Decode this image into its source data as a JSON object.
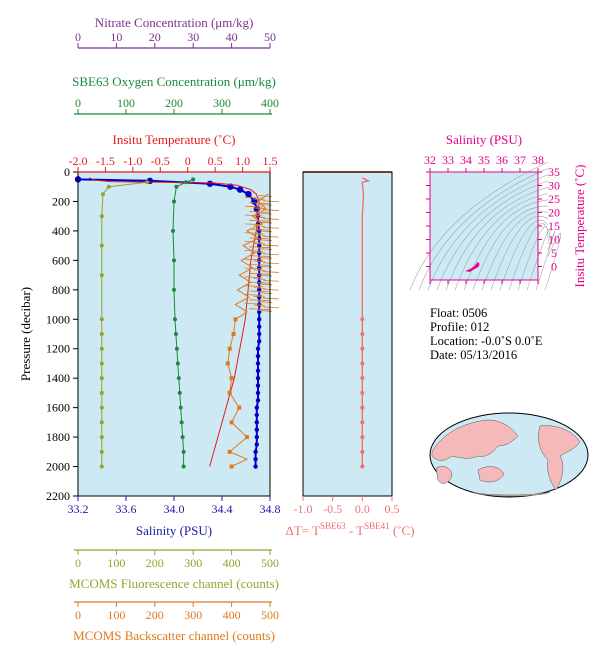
{
  "chart_data": [
    {
      "type": "line",
      "panel": "profiles",
      "axes": {
        "pressure": {
          "label": "Pressure (decibar)",
          "range": [
            0,
            2200
          ],
          "ticks": [
            "0",
            "200",
            "400",
            "600",
            "800",
            "1000",
            "1200",
            "1400",
            "1600",
            "1800",
            "2000",
            "2200"
          ]
        },
        "salinity": {
          "label": "Salinity (PSU)",
          "range": [
            33.2,
            34.8
          ],
          "ticks": [
            "33.2",
            "33.6",
            "34.0",
            "34.4",
            "34.8"
          ],
          "color": "#1a1aa8"
        },
        "temperature": {
          "label": "Insitu Temperature (˚C)",
          "range": [
            -2.0,
            1.5
          ],
          "ticks": [
            "-2.0",
            "-1.5",
            "-1.0",
            "-0.5",
            "0",
            "0.5",
            "1.0",
            "1.5"
          ],
          "color": "#e41a1c"
        },
        "nitrate": {
          "label": "Nitrate Concentration (μm/kg)",
          "range": [
            0,
            50
          ],
          "ticks": [
            "0",
            "10",
            "20",
            "30",
            "40",
            "50"
          ],
          "color": "#7b3294"
        },
        "oxygen": {
          "label": "SBE63 Oxygen Concentration (μm/kg)",
          "range": [
            0,
            400
          ],
          "ticks": [
            "0",
            "100",
            "200",
            "300",
            "400"
          ],
          "color": "#1a8a3a"
        },
        "fluorescence": {
          "label": "MCOMS Fluorescence channel (counts)",
          "range": [
            0,
            500
          ],
          "ticks": [
            "0",
            "100",
            "200",
            "300",
            "400",
            "500"
          ],
          "color": "#9aa02e"
        },
        "backscatter": {
          "label": "MCOMS Backscatter channel (counts)",
          "range": [
            0,
            500
          ],
          "ticks": [
            "0",
            "100",
            "200",
            "300",
            "400",
            "500"
          ],
          "color": "#e0781e"
        }
      },
      "series": [
        {
          "name": "Salinity (PSU)",
          "color": "#0000cc",
          "points": [
            [
              33.2,
              50
            ],
            [
              33.8,
              60
            ],
            [
              34.3,
              80
            ],
            [
              34.47,
              100
            ],
            [
              34.55,
              120
            ],
            [
              34.62,
              150
            ],
            [
              34.67,
              200
            ],
            [
              34.69,
              250
            ],
            [
              34.7,
              300
            ],
            [
              34.7,
              350
            ],
            [
              34.71,
              400
            ],
            [
              34.71,
              450
            ],
            [
              34.71,
              500
            ],
            [
              34.71,
              550
            ],
            [
              34.71,
              600
            ],
            [
              34.71,
              650
            ],
            [
              34.71,
              700
            ],
            [
              34.71,
              750
            ],
            [
              34.71,
              800
            ],
            [
              34.71,
              850
            ],
            [
              34.71,
              900
            ],
            [
              34.71,
              950
            ],
            [
              34.71,
              1000
            ],
            [
              34.71,
              1050
            ],
            [
              34.71,
              1100
            ],
            [
              34.71,
              1150
            ],
            [
              34.7,
              1200
            ],
            [
              34.7,
              1250
            ],
            [
              34.7,
              1300
            ],
            [
              34.7,
              1350
            ],
            [
              34.7,
              1400
            ],
            [
              34.7,
              1450
            ],
            [
              34.7,
              1500
            ],
            [
              34.7,
              1550
            ],
            [
              34.69,
              1600
            ],
            [
              34.69,
              1650
            ],
            [
              34.69,
              1700
            ],
            [
              34.69,
              1750
            ],
            [
              34.69,
              1800
            ],
            [
              34.69,
              1850
            ],
            [
              34.68,
              1900
            ],
            [
              34.68,
              1950
            ],
            [
              34.68,
              2000
            ]
          ]
        },
        {
          "name": "Insitu Temperature (˚C)",
          "color": "#e41a1c",
          "points": [
            [
              -1.8,
              40
            ],
            [
              -1.7,
              55
            ],
            [
              -1.4,
              65
            ],
            [
              -0.5,
              70
            ],
            [
              0.5,
              75
            ],
            [
              0.9,
              90
            ],
            [
              1.15,
              120
            ],
            [
              1.25,
              150
            ],
            [
              1.3,
              200
            ],
            [
              1.28,
              300
            ],
            [
              1.25,
              400
            ],
            [
              1.2,
              500
            ],
            [
              1.15,
              600
            ],
            [
              1.1,
              800
            ],
            [
              1.05,
              1000
            ],
            [
              0.95,
              1200
            ],
            [
              0.85,
              1400
            ],
            [
              0.7,
              1600
            ],
            [
              0.55,
              1800
            ],
            [
              0.4,
              2000
            ]
          ]
        },
        {
          "name": "Nitrate Concentration (μm/kg)",
          "color": "#7b3294",
          "points": []
        },
        {
          "name": "SBE63 Oxygen Concentration (μm/kg)",
          "color": "#1a8a3a",
          "points": [
            [
              240,
              50
            ],
            [
              225,
              70
            ],
            [
              205,
              100
            ],
            [
              200,
              200
            ],
            [
              198,
              400
            ],
            [
              200,
              600
            ],
            [
              200,
              800
            ],
            [
              202,
              1000
            ],
            [
              204,
              1100
            ],
            [
              206,
              1200
            ],
            [
              208,
              1300
            ],
            [
              210,
              1400
            ],
            [
              212,
              1500
            ],
            [
              214,
              1600
            ],
            [
              216,
              1700
            ],
            [
              218,
              1800
            ],
            [
              220,
              1900
            ],
            [
              220,
              2000
            ]
          ]
        },
        {
          "name": "MCOMS Fluorescence channel (counts)",
          "color": "#9aa02e",
          "points": [
            [
              180,
              70
            ],
            [
              80,
              100
            ],
            [
              65,
              150
            ],
            [
              62,
              300
            ],
            [
              62,
              500
            ],
            [
              62,
              700
            ],
            [
              62,
              1000
            ],
            [
              62,
              1100
            ],
            [
              62,
              1200
            ],
            [
              62,
              1300
            ],
            [
              62,
              1400
            ],
            [
              62,
              1500
            ],
            [
              62,
              1600
            ],
            [
              62,
              1700
            ],
            [
              62,
              1800
            ],
            [
              62,
              1900
            ],
            [
              62,
              2000
            ]
          ]
        },
        {
          "name": "MCOMS Backscatter channel (counts)",
          "color": "#e0781e",
          "points": [
            [
              495,
              150
            ],
            [
              470,
              200
            ],
            [
              490,
              250
            ],
            [
              455,
              300
            ],
            [
              480,
              350
            ],
            [
              440,
              400
            ],
            [
              470,
              450
            ],
            [
              430,
              500
            ],
            [
              460,
              550
            ],
            [
              425,
              600
            ],
            [
              455,
              650
            ],
            [
              420,
              700
            ],
            [
              450,
              750
            ],
            [
              415,
              800
            ],
            [
              445,
              850
            ],
            [
              410,
              900
            ],
            [
              440,
              950
            ],
            [
              410,
              1000
            ],
            [
              405,
              1100
            ],
            [
              395,
              1200
            ],
            [
              390,
              1300
            ],
            [
              400,
              1400
            ],
            [
              395,
              1500
            ],
            [
              420,
              1600
            ],
            [
              400,
              1700
            ],
            [
              440,
              1800
            ],
            [
              395,
              1900
            ],
            [
              440,
              1950
            ],
            [
              400,
              2000
            ]
          ],
          "markers": [
            [
              410,
              1000
            ],
            [
              405,
              1100
            ],
            [
              395,
              1200
            ],
            [
              390,
              1300
            ],
            [
              400,
              1400
            ],
            [
              395,
              1500
            ],
            [
              420,
              1600
            ],
            [
              400,
              1700
            ],
            [
              440,
              1800
            ],
            [
              395,
              1900
            ],
            [
              400,
              2000
            ]
          ]
        }
      ]
    },
    {
      "type": "line",
      "panel": "delta-t",
      "xlabel_parts": [
        "ΔT= T",
        "SBE63",
        " - T",
        "SBE41",
        " (˚C)"
      ],
      "xlim": [
        -1.0,
        0.5
      ],
      "xticks": [
        "-1.0",
        "-0.5",
        "0.0",
        "0.5"
      ],
      "ylim": [
        0,
        2200
      ],
      "series": [
        {
          "name": "ΔT",
          "color": "#f07070",
          "points": [
            [
              0.0,
              40
            ],
            [
              0.1,
              60
            ],
            [
              0.0,
              70
            ],
            [
              0.02,
              150
            ],
            [
              0.0,
              300
            ],
            [
              0.0,
              500
            ],
            [
              0.0,
              800
            ],
            [
              0.0,
              1000
            ],
            [
              0.0,
              1100
            ],
            [
              0.0,
              1200
            ],
            [
              0.0,
              1300
            ],
            [
              0.0,
              1400
            ],
            [
              0.0,
              1500
            ],
            [
              0.0,
              1600
            ],
            [
              0.0,
              1700
            ],
            [
              0.0,
              1800
            ],
            [
              0.0,
              1900
            ],
            [
              0.0,
              2000
            ]
          ]
        }
      ]
    },
    {
      "type": "scatter",
      "panel": "ts-diagram",
      "title": "Salinity (PSU)",
      "ylabel": "Insitu Temperature (˚C)",
      "xlim": [
        32,
        38
      ],
      "ylim": [
        -5,
        35
      ],
      "xticks": [
        "32",
        "33",
        "34",
        "35",
        "36",
        "37",
        "38"
      ],
      "yticks": [
        "0",
        "5",
        "10",
        "15",
        "20",
        "25",
        "30",
        "35"
      ],
      "color": "#e6008a",
      "points": [
        [
          34.1,
          -1.6
        ],
        [
          34.3,
          -1.0
        ],
        [
          34.5,
          0.0
        ],
        [
          34.6,
          0.8
        ],
        [
          34.65,
          1.3
        ],
        [
          34.7,
          1.0
        ],
        [
          34.7,
          0.5
        ],
        [
          34.65,
          0.0
        ],
        [
          34.2,
          -1.7
        ]
      ]
    }
  ],
  "info": {
    "float": "Float:  0506",
    "profile": "Profile:  012",
    "location": "Location:  -0.0˚S   0.0˚E",
    "date": "Date:  05/13/2016"
  }
}
